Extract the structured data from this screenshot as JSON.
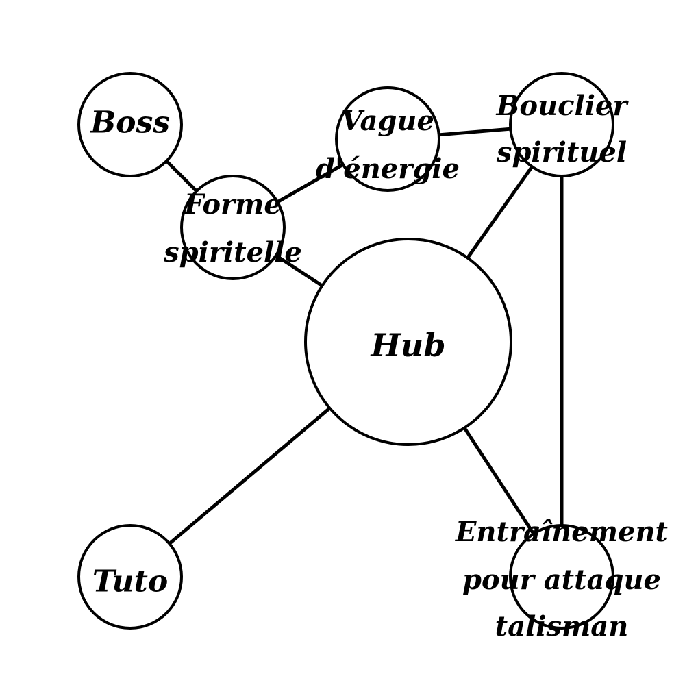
{
  "diagram": {
    "nodes": [
      {
        "id": "boss",
        "lines": [
          "Boss"
        ]
      },
      {
        "id": "forme",
        "lines": [
          "Forme",
          "spiritelle"
        ]
      },
      {
        "id": "vague",
        "lines": [
          "Vague",
          "d'énergie"
        ]
      },
      {
        "id": "bouclier",
        "lines": [
          "Bouclier",
          "spirituel"
        ]
      },
      {
        "id": "hub",
        "lines": [
          "Hub"
        ]
      },
      {
        "id": "tuto",
        "lines": [
          "Tuto"
        ]
      },
      {
        "id": "entrainement",
        "lines": [
          "Entraînement",
          "pour attaque",
          "talisman"
        ]
      }
    ],
    "edges": [
      [
        "boss",
        "forme"
      ],
      [
        "forme",
        "vague"
      ],
      [
        "vague",
        "bouclier"
      ],
      [
        "forme",
        "hub"
      ],
      [
        "bouclier",
        "hub"
      ],
      [
        "bouclier",
        "entrainement"
      ],
      [
        "hub",
        "tuto"
      ],
      [
        "hub",
        "entrainement"
      ]
    ],
    "colors": {
      "stroke": "#000000",
      "fill": "#ffffff",
      "text": "#000000"
    }
  }
}
